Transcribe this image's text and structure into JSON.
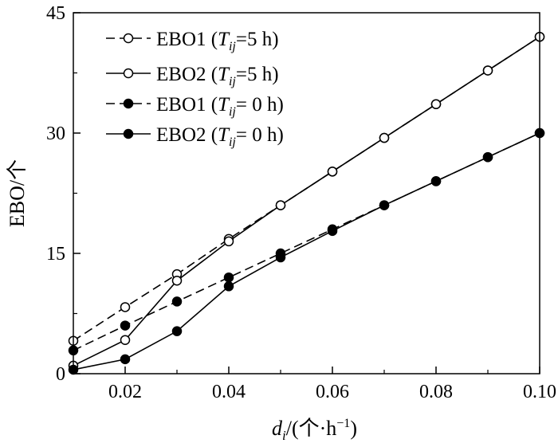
{
  "chart_data": {
    "type": "line",
    "x": [
      0.01,
      0.02,
      0.03,
      0.04,
      0.05,
      0.06,
      0.07,
      0.08,
      0.09,
      0.1
    ],
    "xlim": [
      0.01,
      0.1
    ],
    "ylim": [
      0,
      45
    ],
    "xticks": [
      "0.02",
      "0.04",
      "0.06",
      "0.08",
      "0.10"
    ],
    "xtick_values": [
      0.02,
      0.04,
      0.06,
      0.08,
      0.1
    ],
    "yticks": [
      "0",
      "15",
      "30",
      "45"
    ],
    "ytick_values": [
      0,
      15,
      30,
      45
    ],
    "xlabel": {
      "main": "d",
      "sub": "i",
      "rest": "/(个·h",
      "sup": "−1",
      "end": ")"
    },
    "ylabel": "EBO/个",
    "grid": false,
    "legend_position": "top-left",
    "series": [
      {
        "name_main": "EBO1 (",
        "name_T": "T",
        "name_sub": "ij",
        "name_rest": "=5 h)",
        "line": "dashed",
        "marker": "open-circle",
        "values": [
          4.1,
          8.3,
          12.4,
          16.8,
          21.0,
          25.2,
          29.4,
          33.6,
          37.8,
          42.0
        ]
      },
      {
        "name_main": "EBO2 (",
        "name_T": "T",
        "name_sub": "ij",
        "name_rest": "=5 h)",
        "line": "solid",
        "marker": "open-circle",
        "values": [
          1.0,
          4.2,
          11.6,
          16.5,
          21.0,
          25.2,
          29.4,
          33.6,
          37.8,
          42.0
        ]
      },
      {
        "name_main": "EBO1 (",
        "name_T": "T",
        "name_sub": "ij",
        "name_rest": "= 0 h)",
        "line": "dashed",
        "marker": "filled-circle",
        "values": [
          2.9,
          6.0,
          9.0,
          12.0,
          15.0,
          18.0,
          21.0,
          24.0,
          27.0,
          30.0
        ]
      },
      {
        "name_main": "EBO2 (",
        "name_T": "T",
        "name_sub": "ij",
        "name_rest": "= 0 h)",
        "line": "solid",
        "marker": "filled-circle",
        "values": [
          0.5,
          1.8,
          5.3,
          10.9,
          14.5,
          17.8,
          21.0,
          24.0,
          27.0,
          30.0
        ]
      }
    ]
  }
}
